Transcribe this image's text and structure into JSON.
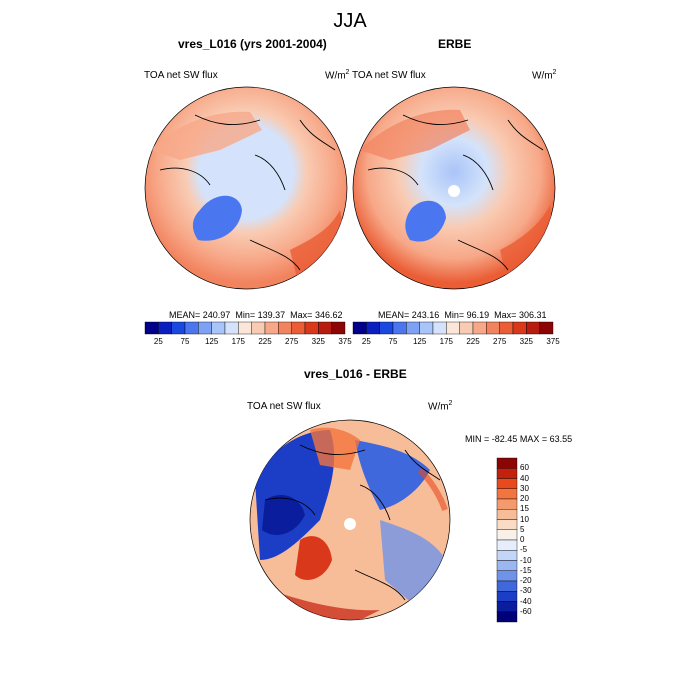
{
  "figure_title": "JJA",
  "panels": {
    "p1": {
      "title": "vres_L016 (yrs 2001-2004)",
      "left_label": "TOA net SW flux",
      "units_base": "W/m",
      "units_exp": "2",
      "mean_label": "MEAN=",
      "mean": "240.97",
      "min_label": "Min=",
      "min": "139.37",
      "max_label": "Max=",
      "max": "346.62"
    },
    "p2": {
      "title": "ERBE",
      "left_label": "TOA net SW flux",
      "units_base": "W/m",
      "units_exp": "2",
      "mean_label": "MEAN=",
      "mean": "243.16",
      "min_label": "Min=",
      "min": "96.19",
      "max_label": "Max=",
      "max": "306.31"
    },
    "p3": {
      "title": "vres_L016 - ERBE",
      "left_label": "TOA net SW flux",
      "units_base": "W/m",
      "units_exp": "2",
      "min_label": "MIN =",
      "min": "-82.45",
      "max_label": "MAX =",
      "max": "63.55"
    }
  },
  "colorbar_flux": {
    "ticks": [
      "25",
      "75",
      "125",
      "175",
      "225",
      "275",
      "325",
      "375"
    ],
    "colors": [
      "#00008c",
      "#0a1fbd",
      "#1a48e0",
      "#4a76f0",
      "#7da2f5",
      "#a9c4f8",
      "#d4e3fb",
      "#fbe6da",
      "#f9cbb3",
      "#f7a888",
      "#f2835f",
      "#ea5d35",
      "#d9391a",
      "#b81c10",
      "#8c0505"
    ]
  },
  "colorbar_diff": {
    "labels": [
      "60",
      "40",
      "30",
      "20",
      "15",
      "10",
      "5",
      "0",
      "-5",
      "-10",
      "-15",
      "-20",
      "-30",
      "-40",
      "-60"
    ],
    "colors": [
      "#8c0505",
      "#c4200e",
      "#e84a1e",
      "#f2743f",
      "#f59a6c",
      "#f7bd98",
      "#fadcc6",
      "#faf0ea",
      "#e6eefb",
      "#c4d6f8",
      "#9bb7f2",
      "#6f93ea",
      "#4068dd",
      "#1c3ec6",
      "#0a1d9c",
      "#000078"
    ]
  },
  "map_colors": {
    "ocean_warm": "#f4a07e",
    "ocean_mid": "#f7c2a6",
    "ice_light": "#d4e3fb",
    "ice_blue": "#9bbcf4",
    "greenland": "#4a76f0",
    "diff_blue": "#1c3ec6",
    "diff_dark": "#0a1d9c",
    "diff_red": "#d9391a"
  }
}
